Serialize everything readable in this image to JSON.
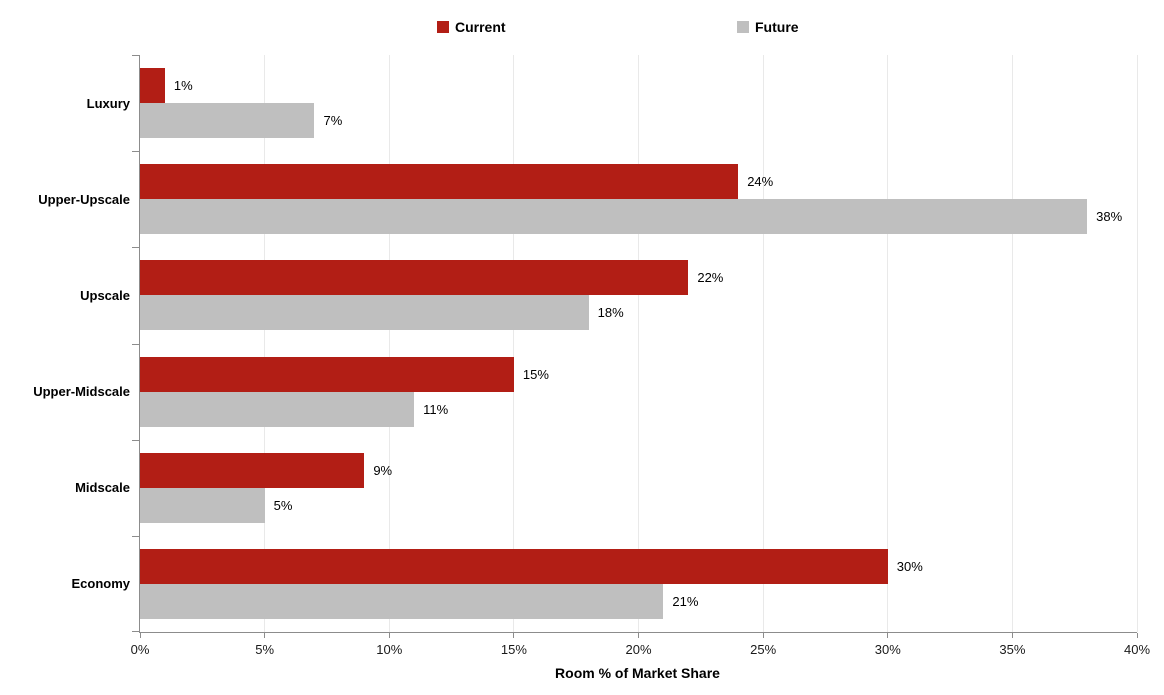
{
  "legend": {
    "items": [
      {
        "label": "Current",
        "color": "#B21E15"
      },
      {
        "label": "Future",
        "color": "#BFBFBF"
      }
    ]
  },
  "chart_data": {
    "type": "bar",
    "orientation": "horizontal",
    "title": "",
    "xlabel": "Room % of Market Share",
    "ylabel": "",
    "categories": [
      "Luxury",
      "Upper-Upscale",
      "Upscale",
      "Upper-Midscale",
      "Midscale",
      "Economy"
    ],
    "series": [
      {
        "name": "Current",
        "color": "#B21E15",
        "values": [
          1,
          24,
          22,
          15,
          9,
          30
        ],
        "labels": [
          "1%",
          "24%",
          "22%",
          "15%",
          "9%",
          "30%"
        ]
      },
      {
        "name": "Future",
        "color": "#BFBFBF",
        "values": [
          7,
          38,
          18,
          11,
          5,
          21
        ],
        "labels": [
          "7%",
          "38%",
          "18%",
          "11%",
          "5%",
          "21%"
        ]
      }
    ],
    "xlim": [
      0,
      40
    ],
    "x_ticks": [
      "0%",
      "5%",
      "10%",
      "15%",
      "20%",
      "25%",
      "30%",
      "35%",
      "40%"
    ],
    "grid": true,
    "legend_position": "top",
    "colors": {
      "axis": "#8C8C8C",
      "gridline": "#E9E9E9",
      "label_text": "#000000"
    }
  }
}
